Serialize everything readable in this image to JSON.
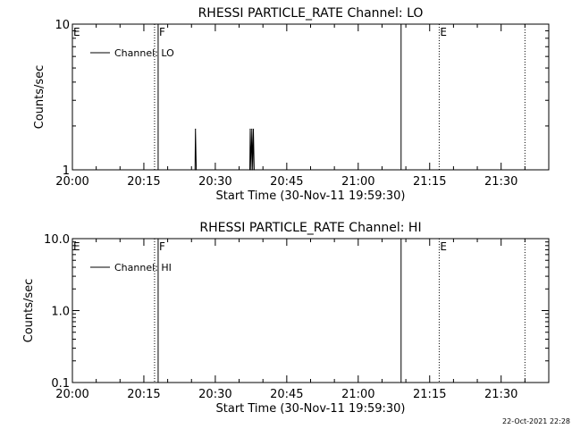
{
  "footer_timestamp": "22-Oct-2021 22:28",
  "chart_data": [
    {
      "type": "line",
      "title": "RHESSI PARTICLE_RATE Channel: LO",
      "xlabel": "Start Time (30-Nov-11 19:59:30)",
      "ylabel": "Counts/sec",
      "y_scale": "log",
      "ylim": [
        1,
        10
      ],
      "y_ticks": [
        1,
        10
      ],
      "y_tick_labels": [
        "1",
        "10"
      ],
      "xlim": [
        "20:00",
        "21:40"
      ],
      "x_ticks": [
        "20:00",
        "20:15",
        "20:30",
        "20:45",
        "21:00",
        "21:15",
        "21:30"
      ],
      "legend": {
        "entries": [
          "Channel: LO"
        ],
        "position": "top-left"
      },
      "series": [
        {
          "name": "Channel: LO",
          "points": [
            {
              "x": "20:25:45",
              "y": 1.0
            },
            {
              "x": "20:25:50",
              "y": 1.9
            },
            {
              "x": "20:26:00",
              "y": 1.0
            },
            {
              "x": "20:37:15",
              "y": 1.0
            },
            {
              "x": "20:37:20",
              "y": 1.9
            },
            {
              "x": "20:37:30",
              "y": 1.0
            },
            {
              "x": "20:37:40",
              "y": 1.9
            },
            {
              "x": "20:37:50",
              "y": 1.0
            },
            {
              "x": "20:38:00",
              "y": 1.9
            },
            {
              "x": "20:38:10",
              "y": 1.0
            }
          ]
        }
      ],
      "markers": [
        {
          "label": "E",
          "x": "20:00",
          "style": "dotted"
        },
        {
          "label": "",
          "x": "20:17:15",
          "style": "dotted"
        },
        {
          "label": "F",
          "x": "20:18",
          "style": "solid"
        },
        {
          "label": "",
          "x": "21:09",
          "style": "solid"
        },
        {
          "label": "E",
          "x": "21:17",
          "style": "dotted"
        },
        {
          "label": "",
          "x": "21:35",
          "style": "dotted"
        }
      ]
    },
    {
      "type": "line",
      "title": "RHESSI PARTICLE_RATE Channel: HI",
      "xlabel": "Start Time (30-Nov-11 19:59:30)",
      "ylabel": "Counts/sec",
      "y_scale": "log",
      "ylim": [
        0.1,
        10
      ],
      "y_ticks": [
        0.1,
        1,
        10
      ],
      "y_tick_labels": [
        "0.1",
        "1.0",
        "10.0"
      ],
      "xlim": [
        "20:00",
        "21:40"
      ],
      "x_ticks": [
        "20:00",
        "20:15",
        "20:30",
        "20:45",
        "21:00",
        "21:15",
        "21:30"
      ],
      "legend": {
        "entries": [
          "Channel: HI"
        ],
        "position": "top-left"
      },
      "series": [
        {
          "name": "Channel: HI",
          "points": []
        }
      ],
      "markers": [
        {
          "label": "E",
          "x": "20:00",
          "style": "dotted"
        },
        {
          "label": "",
          "x": "20:17:15",
          "style": "dotted"
        },
        {
          "label": "F",
          "x": "20:18",
          "style": "solid"
        },
        {
          "label": "",
          "x": "21:09",
          "style": "solid"
        },
        {
          "label": "E",
          "x": "21:17",
          "style": "dotted"
        },
        {
          "label": "",
          "x": "21:35",
          "style": "dotted"
        }
      ]
    }
  ]
}
